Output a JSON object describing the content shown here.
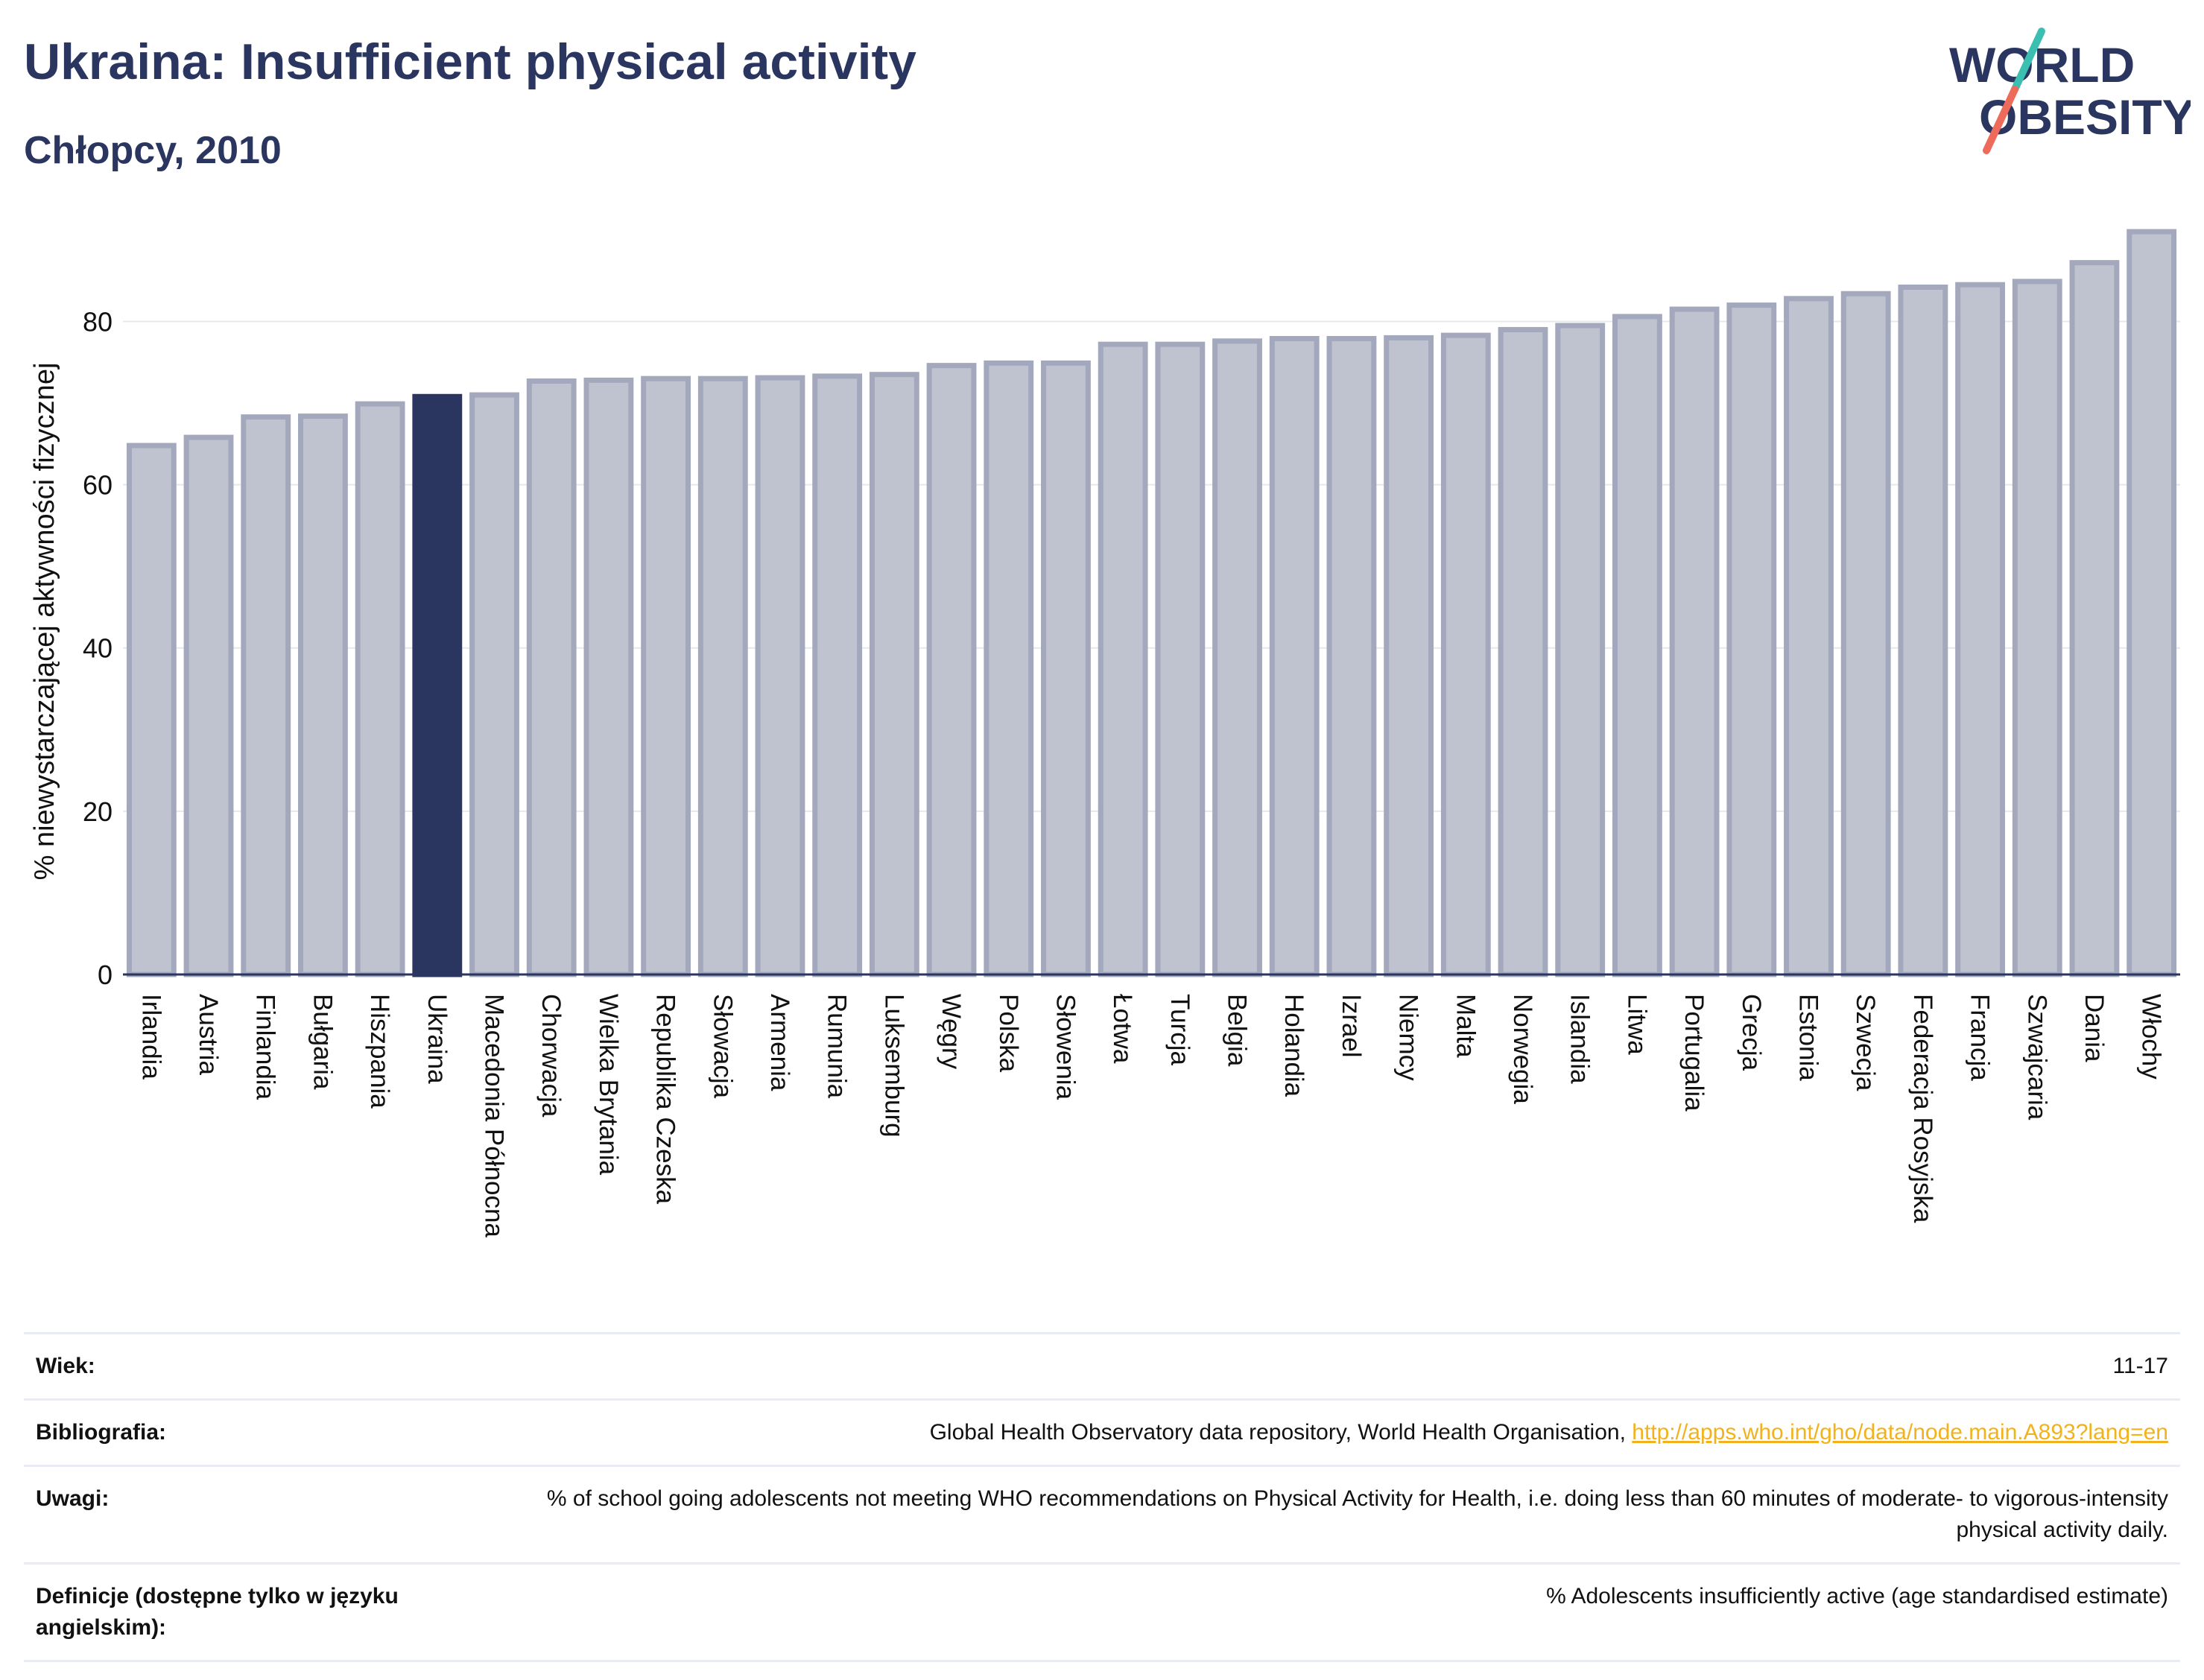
{
  "header": {
    "title": "Ukraina: Insufficient physical activity",
    "subtitle": "Chłopcy, 2010",
    "logo_line1": "WORLD",
    "logo_line2": "OBESITY"
  },
  "colors": {
    "bar": "#bfc2cf",
    "bar_border": "#a3a8bd",
    "highlight": "#2a3560",
    "title": "#2a3560",
    "link": "#f2b21b",
    "logo_teal": "#3bbfb1",
    "logo_coral": "#ee6b5b"
  },
  "chart_data": {
    "type": "bar",
    "ylabel": "% niewystarczającej aktywności fizycznej",
    "ylim": [
      0,
      92
    ],
    "yticks": [
      0,
      20,
      40,
      60,
      80
    ],
    "grid": true,
    "highlight_category": "Ukraina",
    "categories": [
      "Irlandia",
      "Austria",
      "Finlandia",
      "Bułgaria",
      "Hiszpania",
      "Ukraina",
      "Macedonia Północna",
      "Chorwacja",
      "Wielka Brytania",
      "Republika Czeska",
      "Słowacja",
      "Armenia",
      "Rumunia",
      "Luksemburg",
      "Węgry",
      "Polska",
      "Słowenia",
      "Łotwa",
      "Turcja",
      "Belgia",
      "Holandia",
      "Izrael",
      "Niemcy",
      "Malta",
      "Norwegia",
      "Islandia",
      "Litwa",
      "Portugalia",
      "Grecja",
      "Estonia",
      "Szwecja",
      "Federacja Rosyjska",
      "Francja",
      "Szwajcaria",
      "Dania",
      "Włochy"
    ],
    "values": [
      64.8,
      65.8,
      68.3,
      68.4,
      69.9,
      70.8,
      71.0,
      72.7,
      72.8,
      73.0,
      73.0,
      73.1,
      73.3,
      73.5,
      74.6,
      74.9,
      74.9,
      77.2,
      77.2,
      77.6,
      77.9,
      77.9,
      78.0,
      78.3,
      79.0,
      79.5,
      80.6,
      81.5,
      82.0,
      82.8,
      83.4,
      84.2,
      84.5,
      84.9,
      87.2,
      91.0
    ]
  },
  "meta": {
    "age_label": "Wiek:",
    "age_value": "11-17",
    "bibliography_label": "Bibliografia:",
    "bibliography_text": "Global Health Observatory data repository, World Health Organisation,",
    "bibliography_link": "http://apps.who.int/gho/data/node.main.A893?lang=en",
    "notes_label": "Uwagi:",
    "notes_value": "% of school going adolescents not meeting WHO recommendations on Physical Activity for Health, i.e. doing less than 60 minutes of moderate- to vigorous-intensity physical activity daily.",
    "definitions_label": "Definicje (dostępne tylko w języku angielskim):",
    "definitions_value": "% Adolescents insufficiently active (age standardised estimate)"
  }
}
